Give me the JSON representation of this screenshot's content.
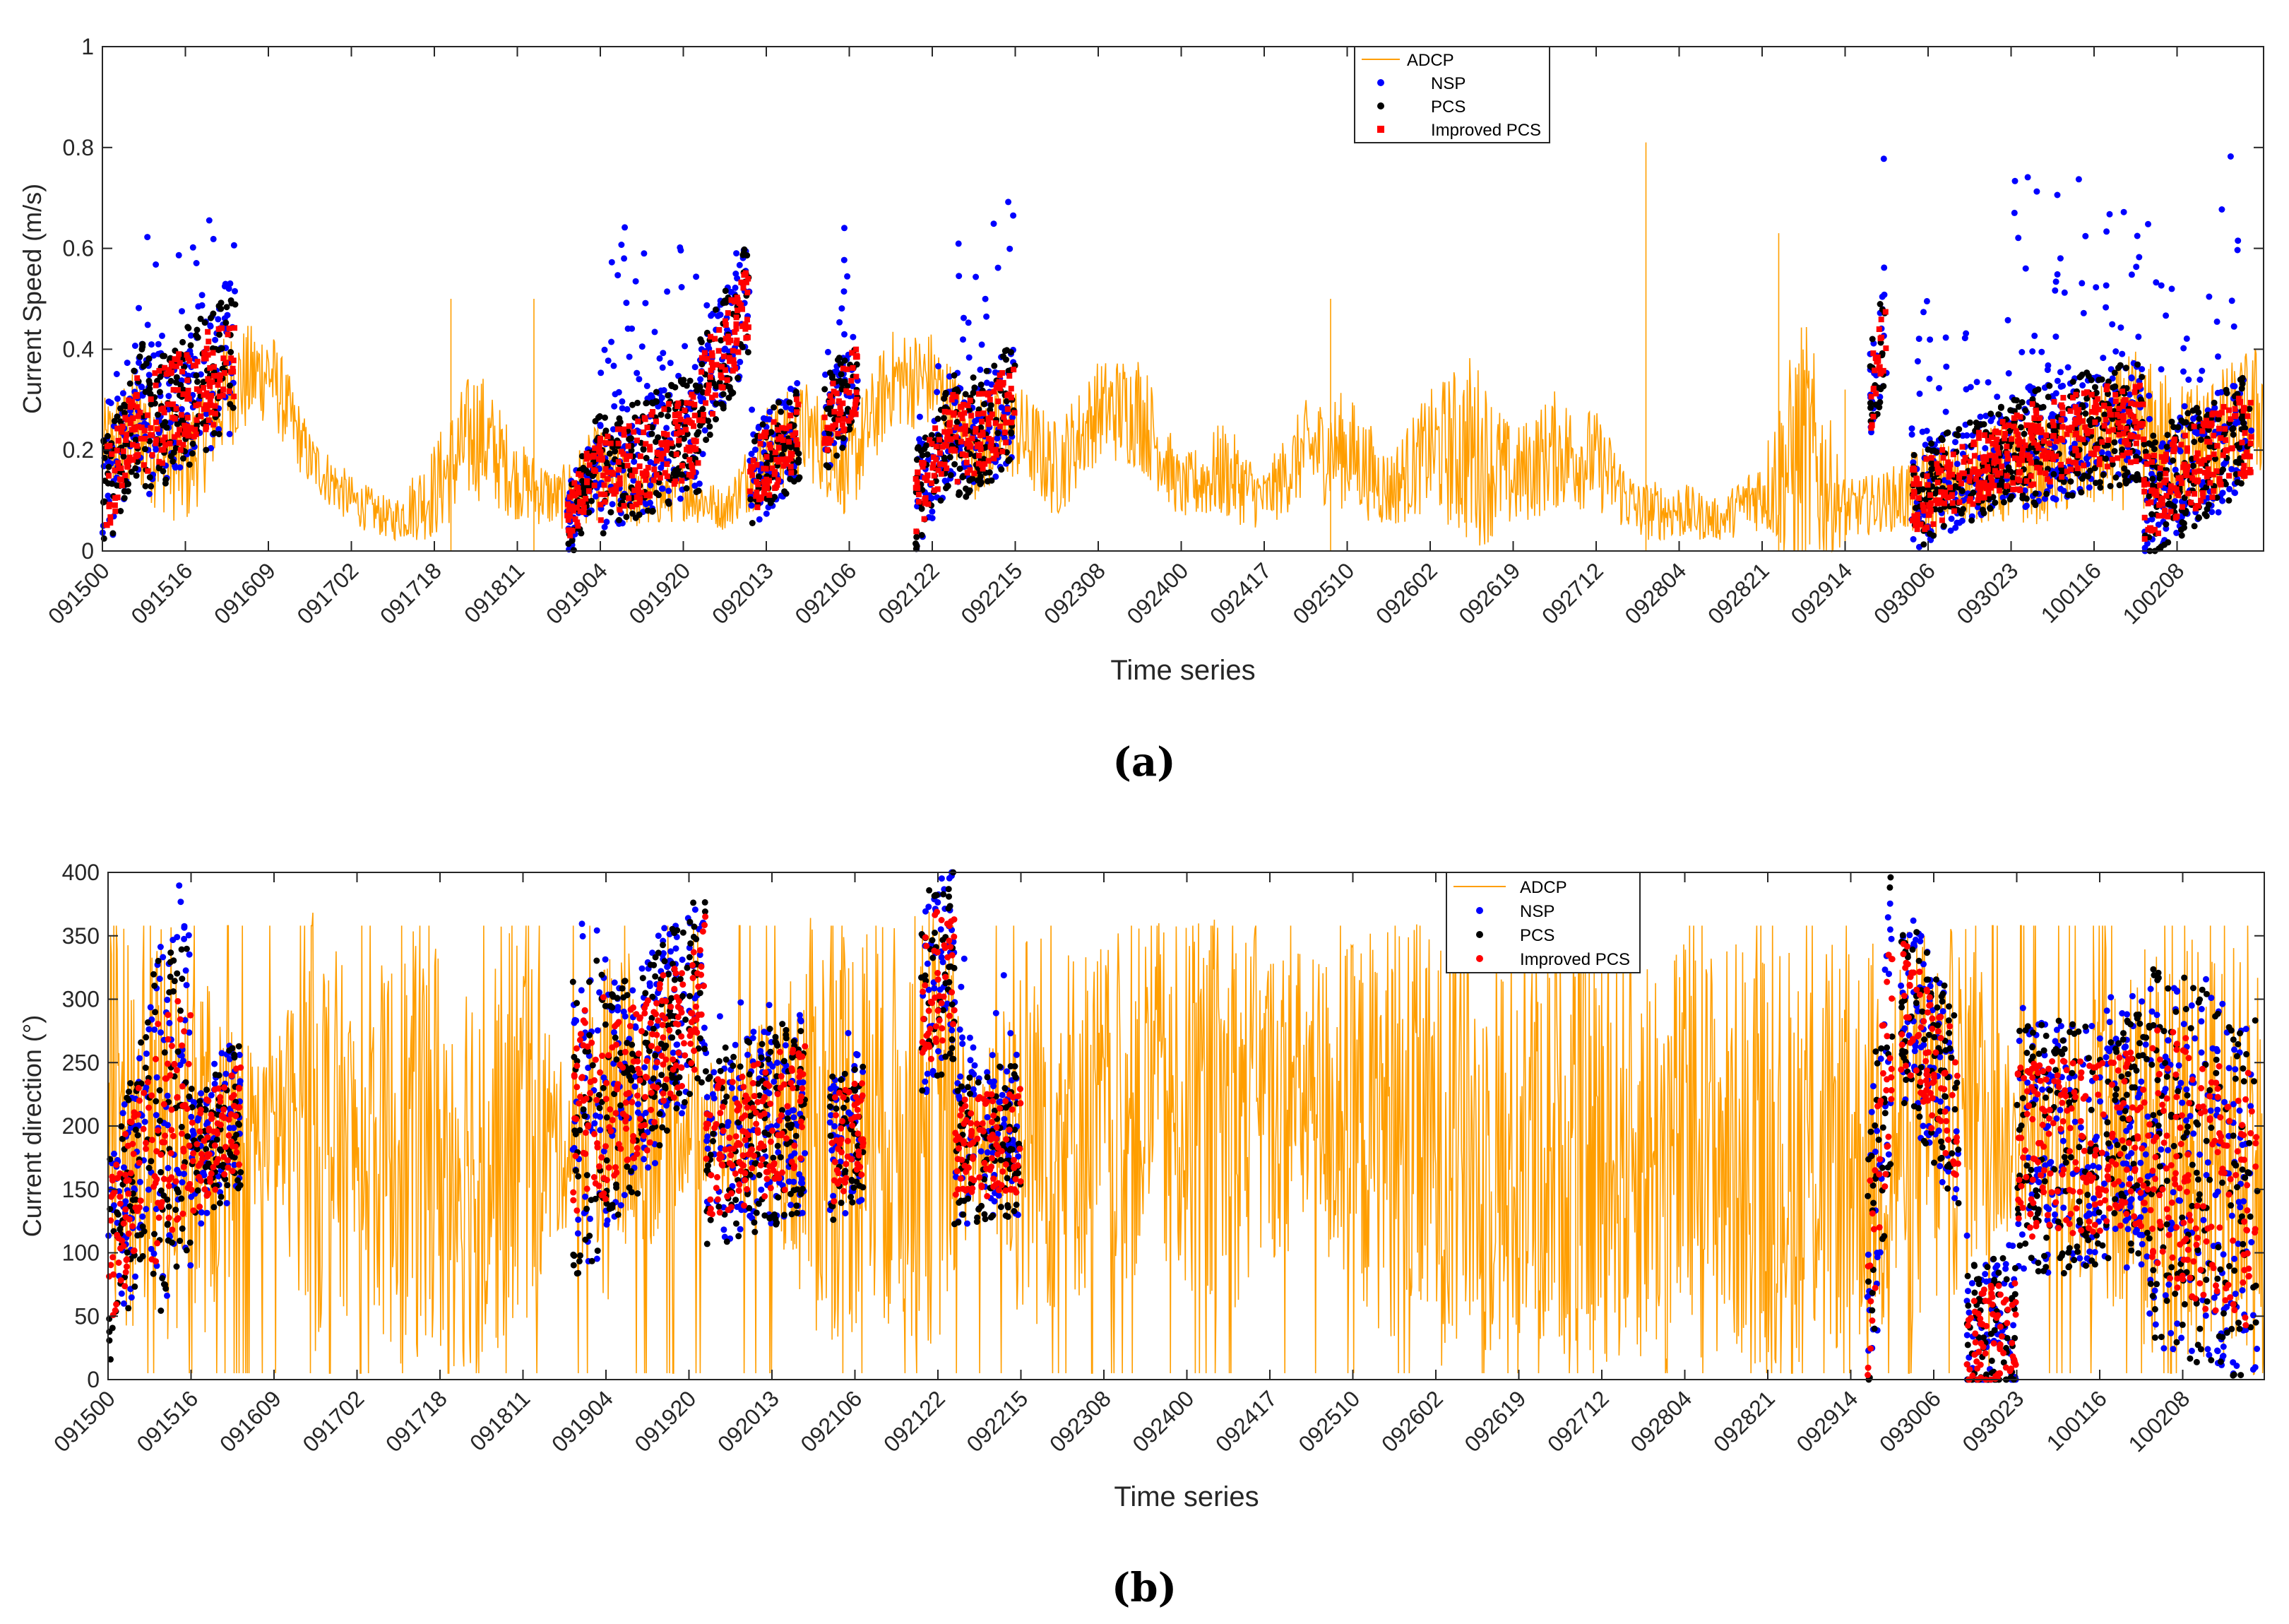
{
  "chart_data": [
    {
      "type": "line",
      "panel_label": "(a)",
      "xlabel": "Time series",
      "ylabel": "Current Speed (m/s)",
      "ylim": [
        0,
        1
      ],
      "yticks": [
        "0",
        "0.2",
        "0.4",
        "0.6",
        "0.8",
        "1"
      ],
      "ytick_values": [
        0,
        0.2,
        0.4,
        0.6,
        0.8,
        1
      ],
      "xticks": [
        "091500",
        "091516",
        "091609",
        "091702",
        "091718",
        "091811",
        "091904",
        "091920",
        "092013",
        "092106",
        "092122",
        "092215",
        "092308",
        "092400",
        "092417",
        "092510",
        "092602",
        "092619",
        "092712",
        "092804",
        "092821",
        "092914",
        "093006",
        "093023",
        "100116",
        "100208"
      ],
      "legend": [
        "ADCP",
        "NSP",
        "PCS",
        "Improved PCS"
      ],
      "legend_position": "top-center",
      "grid": false,
      "colors": {
        "ADCP": "#ff9e00",
        "NSP": "#0000ff",
        "PCS": "#000000",
        "Improved PCS": "#ff0000"
      },
      "adcp_envelope": {
        "x": [
          0,
          0.5,
          1,
          1.5,
          2,
          2.5,
          3,
          3.5,
          4,
          4.5,
          5,
          5.5,
          6,
          6.5,
          7,
          7.5,
          8,
          8.5,
          9,
          9.5,
          10,
          10.5,
          11,
          11.5,
          12,
          12.5,
          13,
          13.5,
          14,
          14.5,
          15,
          15.5,
          16,
          16.5,
          17,
          17.5,
          18,
          18.5,
          19,
          19.5,
          20,
          20.5,
          21,
          21.5,
          22,
          22.5,
          23,
          23.5,
          24,
          24.5,
          25,
          25.5,
          26,
          26.5
        ],
        "mid": [
          0.2,
          0.24,
          0.16,
          0.32,
          0.36,
          0.18,
          0.1,
          0.06,
          0.12,
          0.24,
          0.14,
          0.1,
          0.16,
          0.1,
          0.12,
          0.08,
          0.2,
          0.24,
          0.16,
          0.34,
          0.34,
          0.2,
          0.24,
          0.16,
          0.28,
          0.28,
          0.12,
          0.16,
          0.1,
          0.2,
          0.2,
          0.12,
          0.2,
          0.2,
          0.14,
          0.2,
          0.18,
          0.08,
          0.08,
          0.06,
          0.12,
          0.2,
          0.08,
          0.1,
          0.12,
          0.14,
          0.16,
          0.16,
          0.2,
          0.24,
          0.2,
          0.22,
          0.28,
          0.22
        ],
        "amp": [
          0.1,
          0.14,
          0.12,
          0.12,
          0.1,
          0.06,
          0.05,
          0.04,
          0.1,
          0.14,
          0.08,
          0.06,
          0.1,
          0.06,
          0.06,
          0.04,
          0.1,
          0.1,
          0.1,
          0.1,
          0.1,
          0.1,
          0.1,
          0.1,
          0.1,
          0.12,
          0.06,
          0.1,
          0.06,
          0.1,
          0.12,
          0.08,
          0.12,
          0.2,
          0.1,
          0.12,
          0.1,
          0.06,
          0.06,
          0.04,
          0.08,
          0.28,
          0.06,
          0.06,
          0.1,
          0.08,
          0.12,
          0.1,
          0.12,
          0.16,
          0.14,
          0.14,
          0.14,
          0.14
        ],
        "spikes": [
          [
            4.2,
            0.5
          ],
          [
            5.2,
            0.5
          ],
          [
            14.8,
            0.5
          ],
          [
            18.6,
            0.81
          ],
          [
            20.2,
            0.63
          ],
          [
            21,
            0.32
          ]
        ]
      },
      "scatter_clusters": [
        {
          "x0": 0,
          "x1": 0.5,
          "y0": 0.1,
          "y1": 0.3,
          "spread": 0.12,
          "nsp_extra": 0.1
        },
        {
          "x0": 0.5,
          "x1": 1.6,
          "y0": 0.24,
          "y1": 0.38,
          "spread": 0.14,
          "nsp_extra": 0.3
        },
        {
          "x0": 5.6,
          "x1": 6.0,
          "y0": 0.05,
          "y1": 0.2,
          "spread": 0.08,
          "nsp_extra": 0.05
        },
        {
          "x0": 6.0,
          "x1": 7.2,
          "y0": 0.14,
          "y1": 0.24,
          "spread": 0.12,
          "nsp_extra": 0.38
        },
        {
          "x0": 7.2,
          "x1": 7.8,
          "y0": 0.3,
          "y1": 0.5,
          "spread": 0.12,
          "nsp_extra": 0.1
        },
        {
          "x0": 7.8,
          "x1": 8.4,
          "y0": 0.14,
          "y1": 0.24,
          "spread": 0.1,
          "nsp_extra": 0.06
        },
        {
          "x0": 8.7,
          "x1": 9.1,
          "y0": 0.24,
          "y1": 0.34,
          "spread": 0.1,
          "nsp_extra": 0.3
        },
        {
          "x0": 9.8,
          "x1": 10.3,
          "y0": 0.1,
          "y1": 0.26,
          "spread": 0.1,
          "nsp_extra": 0.08
        },
        {
          "x0": 10.3,
          "x1": 11.0,
          "y0": 0.2,
          "y1": 0.3,
          "spread": 0.12,
          "nsp_extra": 0.44
        },
        {
          "x0": 21.3,
          "x1": 21.5,
          "y0": 0.3,
          "y1": 0.45,
          "spread": 0.1,
          "nsp_extra": 0.32
        },
        {
          "x0": 21.8,
          "x1": 23.0,
          "y0": 0.1,
          "y1": 0.2,
          "spread": 0.1,
          "nsp_extra": 0.3
        },
        {
          "x0": 23.0,
          "x1": 24.6,
          "y0": 0.2,
          "y1": 0.26,
          "spread": 0.12,
          "nsp_extra": 0.46
        },
        {
          "x0": 24.6,
          "x1": 25.9,
          "y0": 0.1,
          "y1": 0.24,
          "spread": 0.12,
          "nsp_extra": 0.5
        }
      ]
    },
    {
      "type": "line",
      "panel_label": "(b)",
      "xlabel": "Time series",
      "ylabel": "Current direction (°)",
      "ylim": [
        0,
        400
      ],
      "yticks": [
        "0",
        "50",
        "100",
        "150",
        "200",
        "250",
        "300",
        "350",
        "400"
      ],
      "ytick_values": [
        0,
        50,
        100,
        150,
        200,
        250,
        300,
        350,
        400
      ],
      "xticks": [
        "091500",
        "091516",
        "091609",
        "091702",
        "091718",
        "091811",
        "091904",
        "091920",
        "092013",
        "092106",
        "092122",
        "092215",
        "092308",
        "092400",
        "092417",
        "092510",
        "092602",
        "092619",
        "092712",
        "092804",
        "092821",
        "092914",
        "093006",
        "093023",
        "100116",
        "100208"
      ],
      "legend": [
        "ADCP",
        "NSP",
        "PCS",
        "Improved PCS"
      ],
      "legend_position": "top-center",
      "grid": false,
      "colors": {
        "ADCP": "#ff9e00",
        "NSP": "#0000ff",
        "PCS": "#000000",
        "Improved PCS": "#ff0000"
      },
      "adcp_envelope": {
        "x": [
          0,
          0.5,
          1,
          1.5,
          2,
          2.5,
          3,
          3.5,
          4,
          4.5,
          5,
          5.5,
          6,
          6.5,
          7,
          7.5,
          8,
          8.5,
          9,
          9.5,
          10,
          10.5,
          11,
          11.5,
          12,
          12.5,
          13,
          13.5,
          14,
          14.5,
          15,
          15.5,
          16,
          16.5,
          17,
          17.5,
          18,
          18.5,
          19,
          19.5,
          20,
          20.5,
          21,
          21.5,
          22,
          22.5,
          23,
          23.5,
          24,
          24.5,
          25,
          25.5,
          26,
          26.5
        ],
        "mid": [
          180,
          200,
          180,
          180,
          200,
          200,
          180,
          180,
          180,
          180,
          200,
          180,
          200,
          220,
          200,
          200,
          210,
          200,
          200,
          200,
          200,
          190,
          200,
          200,
          210,
          220,
          210,
          210,
          220,
          220,
          200,
          200,
          180,
          180,
          180,
          190,
          180,
          180,
          180,
          180,
          180,
          180,
          180,
          190,
          200,
          220,
          180,
          190,
          180,
          180,
          180,
          180,
          170,
          170
        ],
        "amp": [
          170,
          170,
          170,
          100,
          60,
          180,
          120,
          170,
          180,
          170,
          170,
          60,
          140,
          120,
          50,
          60,
          80,
          170,
          170,
          160,
          180,
          40,
          170,
          150,
          140,
          140,
          150,
          160,
          130,
          120,
          150,
          170,
          170,
          170,
          170,
          170,
          170,
          170,
          170,
          170,
          170,
          170,
          160,
          170,
          160,
          140,
          60,
          60,
          160,
          170,
          170,
          170,
          170,
          170
        ],
        "spikes": []
      },
      "scatter_clusters": [
        {
          "x0": 0,
          "x1": 0.5,
          "y0": 90,
          "y1": 200,
          "spread": 90,
          "nsp_extra": 30
        },
        {
          "x0": 0.5,
          "x1": 1.0,
          "y0": 180,
          "y1": 230,
          "spread": 140,
          "nsp_extra": 60
        },
        {
          "x0": 1.0,
          "x1": 1.6,
          "y0": 170,
          "y1": 210,
          "spread": 60,
          "nsp_extra": 30
        },
        {
          "x0": 5.6,
          "x1": 6.0,
          "y0": 200,
          "y1": 220,
          "spread": 120,
          "nsp_extra": 40
        },
        {
          "x0": 6.0,
          "x1": 6.6,
          "y0": 210,
          "y1": 250,
          "spread": 90,
          "nsp_extra": 40
        },
        {
          "x0": 6.6,
          "x1": 7.2,
          "y0": 260,
          "y1": 310,
          "spread": 80,
          "nsp_extra": 30
        },
        {
          "x0": 7.2,
          "x1": 8.4,
          "y0": 180,
          "y1": 210,
          "spread": 80,
          "nsp_extra": 40
        },
        {
          "x0": 8.7,
          "x1": 9.1,
          "y0": 180,
          "y1": 200,
          "spread": 60,
          "nsp_extra": 30
        },
        {
          "x0": 9.8,
          "x1": 10.2,
          "y0": 300,
          "y1": 330,
          "spread": 80,
          "nsp_extra": 40
        },
        {
          "x0": 10.2,
          "x1": 11.0,
          "y0": 180,
          "y1": 190,
          "spread": 60,
          "nsp_extra": 120
        },
        {
          "x0": 21.2,
          "x1": 21.5,
          "y0": 60,
          "y1": 300,
          "spread": 120,
          "nsp_extra": 40
        },
        {
          "x0": 21.6,
          "x1": 22.3,
          "y0": 300,
          "y1": 210,
          "spread": 80,
          "nsp_extra": 40
        },
        {
          "x0": 22.4,
          "x1": 23.0,
          "y0": 30,
          "y1": 40,
          "spread": 60,
          "nsp_extra": 30
        },
        {
          "x0": 23.0,
          "x1": 24.6,
          "y0": 180,
          "y1": 190,
          "spread": 100,
          "nsp_extra": 40
        },
        {
          "x0": 24.6,
          "x1": 25.9,
          "y0": 180,
          "y1": 140,
          "spread": 150,
          "nsp_extra": 60
        }
      ]
    }
  ]
}
